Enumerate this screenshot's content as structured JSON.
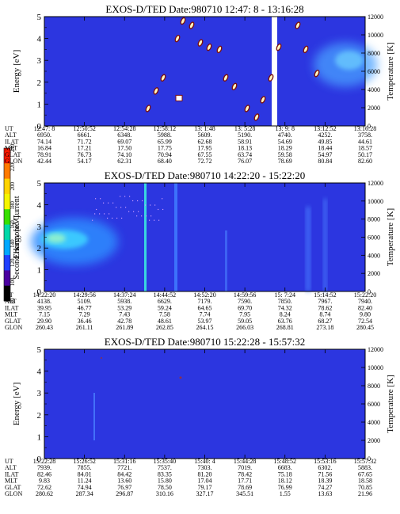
{
  "colorbar": {
    "label": "Second Harmonic Current",
    "ticks": [
      "240",
      "220",
      "200",
      "180",
      "160",
      "140",
      "120",
      "100",
      "80"
    ],
    "colors": [
      "#ff1a00",
      "#ff7a00",
      "#ffd400",
      "#f5f500",
      "#36e000",
      "#00d8a8",
      "#00a8ff",
      "#2040ff",
      "#4a00a0",
      "#000000"
    ]
  },
  "chart_data": [
    {
      "type": "heatmap",
      "title": "EXOS-D/TED   Date:980710  12:47: 8 - 13:16:28",
      "ylabel": "Energy [eV]",
      "y2label": "Temperature [K]",
      "ylim": [
        0,
        5
      ],
      "y2lim": [
        0,
        12000
      ],
      "yticks": [
        "0",
        "1",
        "2",
        "3",
        "4",
        "5"
      ],
      "y2ticks": [
        "0",
        "2000",
        "4000",
        "6000",
        "8000",
        "10000",
        "12000"
      ],
      "background": "#2c36e0",
      "row_labels": [
        "UT",
        "ALT",
        "ILAT",
        "MLT",
        "GLAT",
        "GLON"
      ],
      "columns": [
        [
          "12:47: 8",
          "6950.",
          "74.14",
          "16.84",
          "78.91",
          "42.44"
        ],
        [
          "12:50:52",
          "6661.",
          "71.72",
          "17.21",
          "76.73",
          "54.17"
        ],
        [
          "12:54:28",
          "6348.",
          "69.07",
          "17.50",
          "74.10",
          "62.31"
        ],
        [
          "12:58:12",
          "5988.",
          "65.99",
          "17.75",
          "70.94",
          "68.40"
        ],
        [
          "13: 1:48",
          "5609.",
          "62.68",
          "17.95",
          "67.55",
          "72.72"
        ],
        [
          "13: 5:28",
          "5190.",
          "58.91",
          "18.13",
          "63.74",
          "76.07"
        ],
        [
          "13: 9: 8",
          "4740.",
          "54.69",
          "18.29",
          "59.58",
          "78.69"
        ],
        [
          "13:12:52",
          "4252.",
          "49.85",
          "18.44",
          "54.97",
          "80.84"
        ],
        [
          "13:16:28",
          "3758.",
          "44.61",
          "18.57",
          "50.17",
          "82.60"
        ]
      ]
    },
    {
      "type": "heatmap",
      "title": "EXOS-D/TED   Date:980710  14:22:20 - 15:22:20",
      "ylabel": "Energy [eV]",
      "y2label": "Temperature [K]",
      "ylim": [
        0,
        5
      ],
      "y2lim": [
        0,
        12000
      ],
      "yticks": [
        "0",
        "1",
        "2",
        "3",
        "4",
        "5"
      ],
      "y2ticks": [
        "0",
        "2000",
        "4000",
        "6000",
        "8000",
        "10000",
        "12000"
      ],
      "background": "#2c36e0",
      "row_labels": [
        "UT",
        "ALT",
        "ILAT",
        "MLT",
        "GLAT",
        "GLON"
      ],
      "columns": [
        [
          "14:22:20",
          "4138.",
          "39.95",
          "7.15",
          "29.90",
          "260.43"
        ],
        [
          "14:29:56",
          "5109.",
          "46.77",
          "7.29",
          "36.46",
          "261.11"
        ],
        [
          "14:37:24",
          "5938.",
          "53.29",
          "7.43",
          "42.78",
          "261.89"
        ],
        [
          "14:44:52",
          "6629.",
          "59.24",
          "7.58",
          "48.61",
          "262.85"
        ],
        [
          "14:52:20",
          "7179.",
          "64.65",
          "7.74",
          "53.97",
          "264.15"
        ],
        [
          "14:59:56",
          "7590.",
          "69.70",
          "7.95",
          "59.05",
          "266.03"
        ],
        [
          "15: 7:24",
          "7850.",
          "74.32",
          "8.24",
          "63.76",
          "268.81"
        ],
        [
          "15:14:52",
          "7967.",
          "78.62",
          "8.74",
          "68.27",
          "273.18"
        ],
        [
          "15:22:20",
          "7940.",
          "82.40",
          "9.80",
          "72.54",
          "280.45"
        ]
      ]
    },
    {
      "type": "heatmap",
      "title": "EXOS-D/TED   Date:980710  15:22:28 - 15:57:32",
      "ylabel": "Energy [eV]",
      "y2label": "Temperature [K]",
      "ylim": [
        0,
        5
      ],
      "y2lim": [
        0,
        12000
      ],
      "yticks": [
        "0",
        "1",
        "2",
        "3",
        "4",
        "5"
      ],
      "y2ticks": [
        "0",
        "2000",
        "4000",
        "6000",
        "8000",
        "10000",
        "12000"
      ],
      "background": "#2c36e0",
      "row_labels": [
        "UT",
        "ALT",
        "ILAT",
        "MLT",
        "GLAT",
        "GLON"
      ],
      "columns": [
        [
          "15:22:28",
          "7939.",
          "82.46",
          "9.83",
          "72.62",
          "280.62"
        ],
        [
          "15:26:52",
          "7855.",
          "84.01",
          "11.24",
          "74.94",
          "287.34"
        ],
        [
          "15:31:16",
          "7721.",
          "84.42",
          "13.60",
          "76.97",
          "296.87"
        ],
        [
          "15:35:40",
          "7537.",
          "83.35",
          "15.80",
          "78.50",
          "310.16"
        ],
        [
          "15:40: 4",
          "7303.",
          "81.20",
          "17.04",
          "79.17",
          "327.17"
        ],
        [
          "15:44:28",
          "7019.",
          "78.42",
          "17.71",
          "78.69",
          "345.51"
        ],
        [
          "15:48:52",
          "6683.",
          "75.18",
          "18.12",
          "76.99",
          "1.55"
        ],
        [
          "15:53:16",
          "6302.",
          "71.56",
          "18.39",
          "74.27",
          "13.63"
        ],
        [
          "15:57:32",
          "5883.",
          "67.65",
          "18.58",
          "70.85",
          "21.96"
        ]
      ]
    }
  ]
}
